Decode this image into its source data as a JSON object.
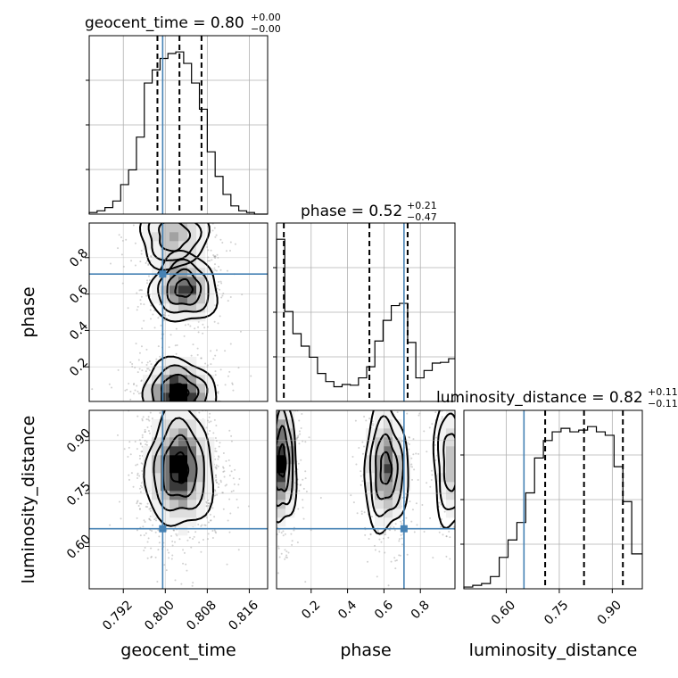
{
  "chart_data": {
    "type": "corner",
    "parameters": [
      "geocent_time",
      "phase",
      "luminosity_distance"
    ],
    "truths": {
      "geocent_time": 0.7995,
      "phase": 0.71,
      "luminosity_distance": 0.65
    },
    "titles": [
      {
        "param": "geocent_time",
        "text": "geocent_time = 0.80",
        "sup": "+0.00",
        "sub": "−0.00"
      },
      {
        "param": "phase",
        "text": "phase = 0.52",
        "sup": "+0.21",
        "sub": "−0.47"
      },
      {
        "param": "luminosity_distance",
        "text": "luminosity_distance = 0.82",
        "sup": "+0.11",
        "sub": "−0.11"
      }
    ],
    "axis_labels": {
      "geocent_time": "geocent_time",
      "phase": "phase",
      "luminosity_distance": "luminosity_distance"
    },
    "ranges": {
      "geocent_time": [
        0.7855,
        0.8195
      ],
      "phase": [
        0.01,
        0.99
      ],
      "luminosity_distance": [
        0.48,
        0.985
      ]
    },
    "ticks": {
      "geocent_time": [
        "0.792",
        "0.800",
        "0.808",
        "0.816"
      ],
      "phase": [
        "0.2",
        "0.4",
        "0.6",
        "0.8"
      ],
      "luminosity_distance": [
        "0.60",
        "0.75",
        "0.90"
      ]
    },
    "quantiles": {
      "geocent_time": [
        0.7985,
        0.8027,
        0.8069
      ],
      "phase": [
        0.05,
        0.52,
        0.73
      ],
      "luminosity_distance": [
        0.71,
        0.82,
        0.93
      ]
    },
    "histograms": {
      "geocent_time": {
        "edges": [
          0.7855,
          0.787,
          0.7885,
          0.79,
          0.7915,
          0.793,
          0.7945,
          0.796,
          0.7975,
          0.799,
          0.8005,
          0.802,
          0.8035,
          0.805,
          0.8065,
          0.808,
          0.8095,
          0.811,
          0.8125,
          0.814,
          0.8155,
          0.817,
          0.8195
        ],
        "counts": [
          1,
          2,
          4,
          8,
          18,
          27,
          47,
          80,
          88,
          95,
          98,
          99,
          92,
          80,
          64,
          38,
          23,
          12,
          5,
          2,
          1,
          0
        ]
      },
      "phase": {
        "edges": [
          0.01,
          0.055,
          0.1,
          0.145,
          0.19,
          0.235,
          0.28,
          0.325,
          0.37,
          0.415,
          0.46,
          0.505,
          0.55,
          0.595,
          0.64,
          0.685,
          0.73,
          0.775,
          0.82,
          0.865,
          0.91,
          0.955,
          0.99
        ],
        "counts": [
          220,
          122,
          92,
          75,
          60,
          38,
          27,
          20,
          23,
          22,
          32,
          47,
          82,
          110,
          130,
          133,
          80,
          32,
          42,
          52,
          53,
          58
        ]
      },
      "luminosity_distance": {
        "edges": [
          0.48,
          0.505,
          0.53,
          0.555,
          0.58,
          0.605,
          0.63,
          0.655,
          0.68,
          0.705,
          0.73,
          0.755,
          0.78,
          0.805,
          0.83,
          0.855,
          0.88,
          0.905,
          0.93,
          0.955,
          0.985
        ],
        "counts": [
          1,
          2,
          3,
          7,
          18,
          28,
          38,
          55,
          75,
          85,
          90,
          92,
          90,
          91,
          93,
          90,
          88,
          70,
          50,
          20
        ]
      }
    },
    "density_modes": [
      {
        "x": "geocent_time",
        "y": "phase",
        "blobs": [
          {
            "cx": 0.8035,
            "cy": 0.63,
            "sx": 0.0032,
            "sy": 0.095,
            "w": 1.0
          },
          {
            "cx": 0.8025,
            "cy": 0.06,
            "sx": 0.0035,
            "sy": 0.09,
            "w": 1.25
          },
          {
            "cx": 0.8015,
            "cy": 0.92,
            "sx": 0.0032,
            "sy": 0.09,
            "w": 0.6
          }
        ]
      },
      {
        "x": "geocent_time",
        "y": "luminosity_distance",
        "blobs": [
          {
            "cx": 0.8027,
            "cy": 0.82,
            "sx": 0.0032,
            "sy": 0.085,
            "w": 1.0
          }
        ]
      },
      {
        "x": "phase",
        "y": "luminosity_distance",
        "blobs": [
          {
            "cx": 0.04,
            "cy": 0.84,
            "sx": 0.04,
            "sy": 0.09,
            "w": 1.0
          },
          {
            "cx": 0.61,
            "cy": 0.82,
            "sx": 0.06,
            "sy": 0.09,
            "w": 0.75
          },
          {
            "cx": 0.97,
            "cy": 0.84,
            "sx": 0.05,
            "sy": 0.09,
            "w": 0.45
          }
        ]
      }
    ],
    "grid": true
  }
}
